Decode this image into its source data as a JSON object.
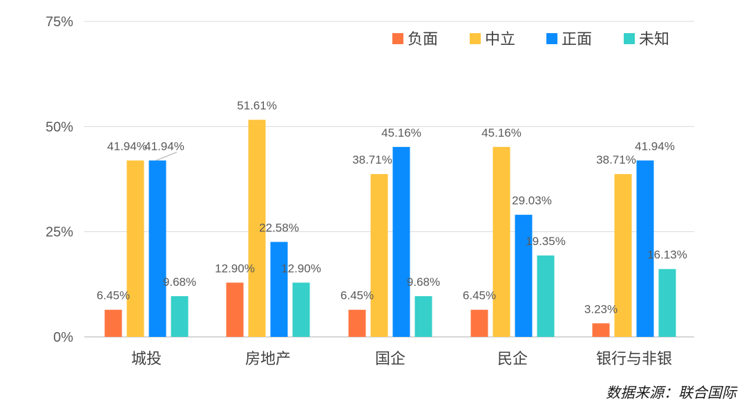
{
  "chart_data": {
    "type": "bar",
    "categories": [
      "城投",
      "房地产",
      "国企",
      "民企",
      "银行与非银"
    ],
    "series": [
      {
        "name": "负面",
        "color": "#FF7540",
        "values": [
          6.45,
          12.9,
          6.45,
          6.45,
          3.23
        ],
        "labels": [
          "6.45%",
          "12.90%",
          "6.45%",
          "6.45%",
          "3.23%"
        ]
      },
      {
        "name": "中立",
        "color": "#FFC43D",
        "values": [
          41.94,
          51.61,
          38.71,
          45.16,
          38.71
        ],
        "labels": [
          "41.94%",
          "51.61%",
          "38.71%",
          "45.16%",
          "38.71%"
        ]
      },
      {
        "name": "正面",
        "color": "#0A8CFF",
        "values": [
          41.94,
          22.58,
          45.16,
          29.03,
          41.94
        ],
        "labels": [
          "41.94%",
          "22.58%",
          "45.16%",
          "29.03%",
          "41.94%"
        ]
      },
      {
        "name": "未知",
        "color": "#36CFC9",
        "values": [
          9.68,
          12.9,
          9.68,
          19.35,
          16.13
        ],
        "labels": [
          "9.68%",
          "12.90%",
          "9.68%",
          "19.35%",
          "16.13%"
        ]
      }
    ],
    "yticks": [
      "0%",
      "25%",
      "50%",
      "75%"
    ],
    "ylim": [
      0,
      75
    ],
    "grid": true,
    "legend_position": "top-right"
  },
  "source_note": "数据来源：联合国际"
}
